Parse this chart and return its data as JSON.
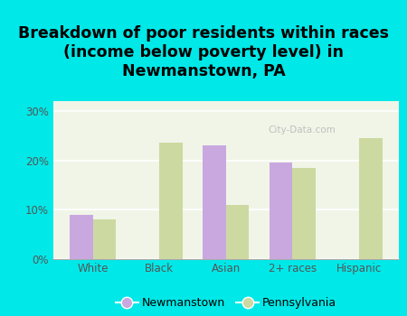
{
  "title": "Breakdown of poor residents within races\n(income below poverty level) in\nNewmanstown, PA",
  "categories": [
    "White",
    "Black",
    "Asian",
    "2+ races",
    "Hispanic"
  ],
  "newmanstown": [
    9.0,
    0.0,
    23.0,
    19.5,
    0.0
  ],
  "pennsylvania": [
    8.0,
    23.5,
    11.0,
    18.5,
    24.5
  ],
  "bar_color_newmanstown": "#c9a8e0",
  "bar_color_pennsylvania": "#ccd9a0",
  "background_outer": "#00e8e8",
  "background_inner_top": "#f0f5e8",
  "background_inner_bottom": "#e0edd0",
  "ylim": [
    0,
    32
  ],
  "yticks": [
    0,
    10,
    20,
    30
  ],
  "ytick_labels": [
    "0%",
    "10%",
    "20%",
    "30%"
  ],
  "legend_newmanstown": "Newmanstown",
  "legend_pennsylvania": "Pennsylvania",
  "title_fontsize": 12.5,
  "bar_width": 0.35
}
